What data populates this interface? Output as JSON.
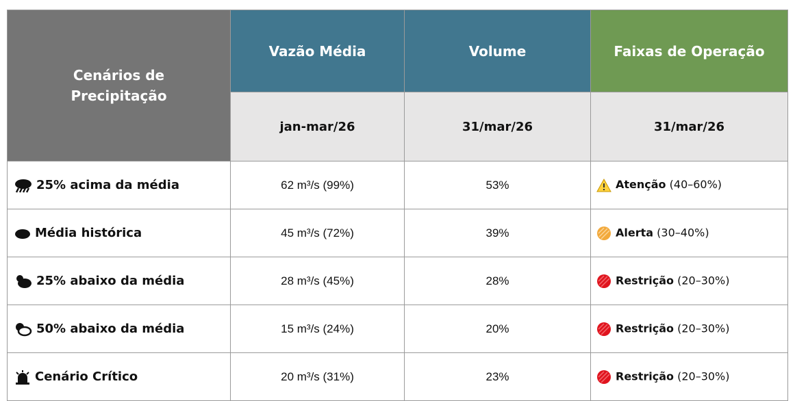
{
  "table": {
    "header": {
      "scenario": "Cenários de Precipitação",
      "flow": "Vazão Média",
      "volume": "Volume",
      "bands": "Faixas de Operação",
      "flow_period": "jan-mar/26",
      "volume_date": "31/mar/26",
      "bands_date": "31/mar/26"
    },
    "rows": [
      {
        "scenario": "25% acima da média",
        "flow": "62 m³/s (99%)",
        "volume": "53%",
        "band": "Atenção",
        "range": "(40–60%)",
        "icon": "rain",
        "level": "warning"
      },
      {
        "scenario": "Média histórica",
        "flow": "45 m³/s (72%)",
        "volume": "39%",
        "band": "Alerta",
        "range": "(30–40%)",
        "icon": "cloud",
        "level": "alert"
      },
      {
        "scenario": "25% abaixo da média",
        "flow": "28 m³/s (45%)",
        "volume": "28%",
        "band": "Restrição",
        "range": "(20–30%)",
        "icon": "sun-cloud",
        "level": "restriction"
      },
      {
        "scenario": "50% abaixo da média",
        "flow": "15 m³/s (24%)",
        "volume": "20%",
        "band": "Restrição",
        "range": "(20–30%)",
        "icon": "sun-cloud-outline",
        "level": "restriction"
      },
      {
        "scenario": "Cenário Crítico",
        "flow": "20 m³/s (31%)",
        "volume": "23%",
        "band": "Restrição",
        "range": "(20–30%)",
        "icon": "alarm",
        "level": "restriction"
      }
    ]
  }
}
